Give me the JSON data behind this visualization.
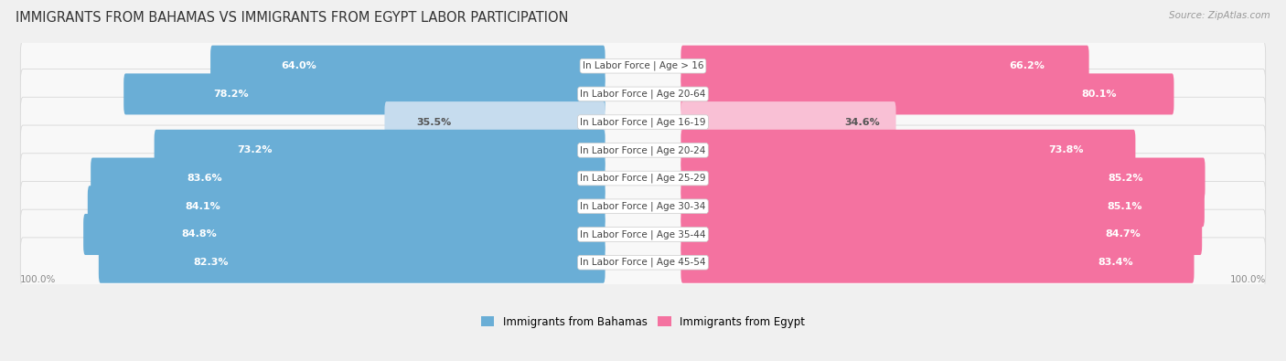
{
  "title": "IMMIGRANTS FROM BAHAMAS VS IMMIGRANTS FROM EGYPT LABOR PARTICIPATION",
  "source": "Source: ZipAtlas.com",
  "categories": [
    "In Labor Force | Age > 16",
    "In Labor Force | Age 20-64",
    "In Labor Force | Age 16-19",
    "In Labor Force | Age 20-24",
    "In Labor Force | Age 25-29",
    "In Labor Force | Age 30-34",
    "In Labor Force | Age 35-44",
    "In Labor Force | Age 45-54"
  ],
  "bahamas_values": [
    64.0,
    78.2,
    35.5,
    73.2,
    83.6,
    84.1,
    84.8,
    82.3
  ],
  "egypt_values": [
    66.2,
    80.1,
    34.6,
    73.8,
    85.2,
    85.1,
    84.7,
    83.4
  ],
  "bahamas_color_strong": "#6aaed6",
  "bahamas_color_light": "#c6dcee",
  "egypt_color_strong": "#f472a0",
  "egypt_color_light": "#f9c0d5",
  "bg_color": "#f0f0f0",
  "row_bg_color": "#f8f8f8",
  "row_edge_color": "#d8d8d8",
  "legend_bahamas": "Immigrants from Bahamas",
  "legend_egypt": "Immigrants from Egypt",
  "max_val": 100.0,
  "title_fontsize": 10.5,
  "source_fontsize": 7.5,
  "bar_label_fontsize": 8,
  "category_fontsize": 7.5,
  "footer_fontsize": 7.5
}
